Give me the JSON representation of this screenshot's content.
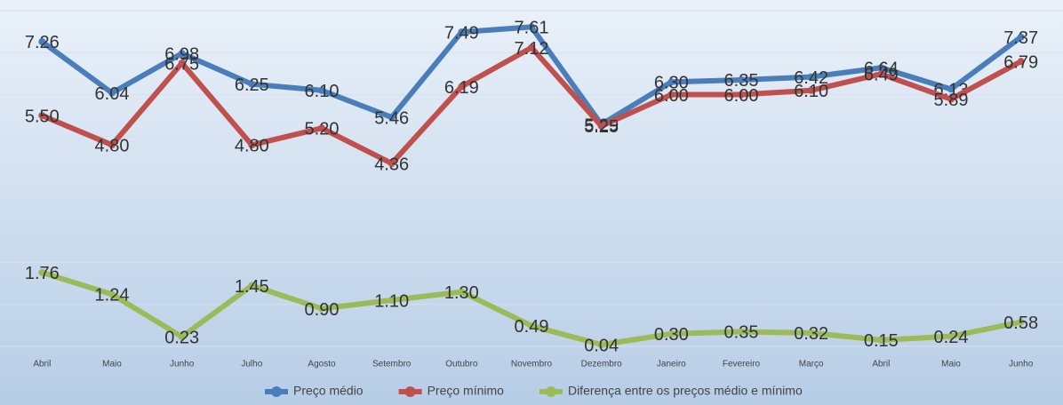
{
  "chart_data": {
    "type": "line",
    "categories": [
      "Abril",
      "Maio",
      "Junho",
      "Julho",
      "Agosto",
      "Setembro",
      "Outubro",
      "Novembro",
      "Dezembro",
      "Janeiro",
      "Fevereiro",
      "Março",
      "Abril",
      "Maio",
      "Junho"
    ],
    "series": [
      {
        "name": "Preço médio",
        "color": "#4a7ebb",
        "values": [
          7.26,
          6.04,
          6.98,
          6.25,
          6.1,
          5.46,
          7.49,
          7.61,
          5.29,
          6.3,
          6.35,
          6.42,
          6.64,
          6.13,
          7.37
        ],
        "value_labels": [
          "7.26",
          "6.04",
          "6.98",
          "6.25",
          "6.10",
          "5.46",
          "7.49",
          "7.61",
          "5.29",
          "6.30",
          "6.35",
          "6.42",
          "6.64",
          "6.13",
          "7.37"
        ]
      },
      {
        "name": "Preço mínimo",
        "color": "#c0504d",
        "values": [
          5.5,
          4.8,
          6.75,
          4.8,
          5.2,
          4.36,
          6.19,
          7.12,
          5.25,
          6.0,
          6.0,
          6.1,
          6.49,
          5.89,
          6.79
        ],
        "value_labels": [
          "5.50",
          "4.80",
          "6.75",
          "4.80",
          "5.20",
          "4.36",
          "6.19",
          "7.12",
          "5.25",
          "6.00",
          "6.00",
          "6.10",
          "6.49",
          "5.89",
          "6.79"
        ]
      },
      {
        "name": "Diferença entre os preços médio e mínimo",
        "color": "#9bbb59",
        "values": [
          1.76,
          1.24,
          0.23,
          1.45,
          0.9,
          1.1,
          1.3,
          0.49,
          0.04,
          0.3,
          0.35,
          0.32,
          0.15,
          0.24,
          0.58
        ],
        "value_labels": [
          "1.76",
          "1.24",
          "0.23",
          "1.45",
          "0.90",
          "1.10",
          "1.30",
          "0.49",
          "0.04",
          "0.30",
          "0.35",
          "0.32",
          "0.15",
          "0.24",
          "0.58"
        ]
      }
    ],
    "ylim": [
      0,
      8
    ],
    "yticks": [
      0,
      1,
      2,
      3,
      4,
      5,
      6,
      7,
      8
    ],
    "grid": true,
    "legend": "bottom"
  }
}
